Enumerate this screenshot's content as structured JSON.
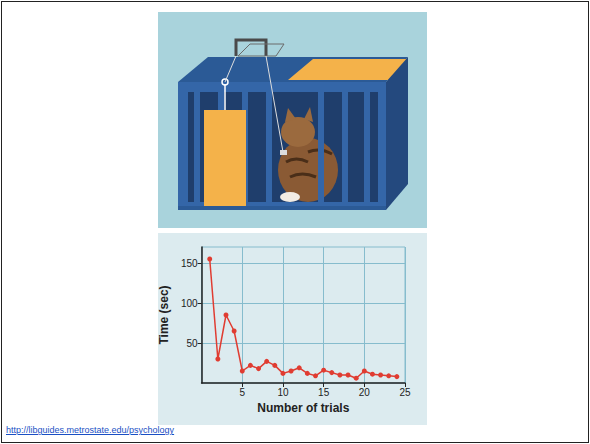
{
  "chart_data": {
    "type": "line",
    "x": [
      1,
      2,
      3,
      4,
      5,
      6,
      7,
      8,
      9,
      10,
      11,
      12,
      13,
      14,
      15,
      16,
      17,
      18,
      19,
      20,
      21,
      22,
      23,
      24
    ],
    "values": [
      155,
      30,
      85,
      65,
      15,
      22,
      18,
      27,
      22,
      12,
      15,
      19,
      12,
      9,
      16,
      13,
      10,
      10,
      6,
      15,
      11,
      10,
      9,
      8
    ],
    "xlabel": "Number of trials",
    "ylabel": "Time (sec)",
    "xlim": [
      0,
      25
    ],
    "xticks": [
      5,
      10,
      15,
      20,
      25
    ],
    "ylim": [
      0,
      170
    ],
    "yticks": [
      50,
      100,
      150
    ],
    "grid": true,
    "color": "#e03c31",
    "marker": "circle"
  },
  "link": "http://libguides.metrostate.edu/psychology"
}
